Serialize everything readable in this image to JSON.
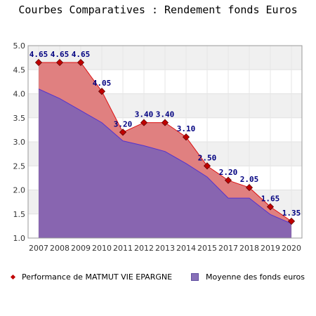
{
  "chart_data": {
    "type": "area",
    "title": "Courbes Comparatives : Rendement fonds Euros",
    "categories": [
      "2007",
      "2008",
      "2009",
      "2010",
      "2011",
      "2012",
      "2013",
      "2014",
      "2015",
      "2017",
      "2018",
      "2019",
      "2020"
    ],
    "series": [
      {
        "name": "Performance de MATMUT VIE EPARGNE",
        "values": [
          4.65,
          4.65,
          4.65,
          4.05,
          3.2,
          3.4,
          3.4,
          3.1,
          2.5,
          2.2,
          2.05,
          1.65,
          1.35
        ],
        "labels": [
          "4.65",
          "4.65",
          "4.65",
          "4.05",
          "3.20",
          "3.40",
          "3.40",
          "3.10",
          "2.50",
          "2.20",
          "2.05",
          "1.65",
          "1.35"
        ],
        "color": "#dd1111",
        "fill": "#e08080"
      },
      {
        "name": "Moyenne des fonds euros",
        "values": [
          4.1,
          3.9,
          3.65,
          3.4,
          3.02,
          2.92,
          2.8,
          2.55,
          2.27,
          1.83,
          1.83,
          1.49,
          1.3
        ],
        "color": "#5533cc",
        "fill": "#8865b0"
      }
    ],
    "ylim": [
      1.0,
      5.0
    ],
    "yticks": [
      "1.0",
      "1.5",
      "2.0",
      "2.5",
      "3.0",
      "3.5",
      "4.0",
      "4.5",
      "5.0"
    ],
    "grid": true,
    "legend_position": "bottom"
  },
  "legend": {
    "series1": "Performance de MATMUT VIE EPARGNE",
    "series2": "Moyenne des fonds euros"
  }
}
